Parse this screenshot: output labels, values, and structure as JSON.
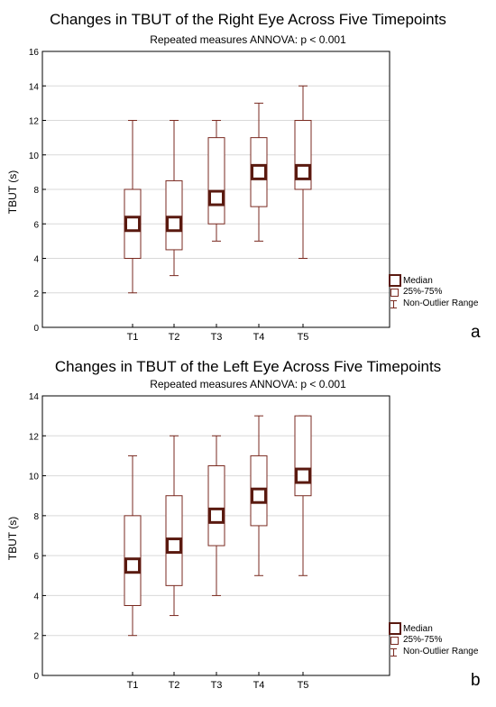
{
  "panels": [
    {
      "title": "Changes in TBUT of the Right Eye Across Five Timepoints",
      "subtitle": "Repeated measures ANNOVA: p < 0.001",
      "letter": "a"
    },
    {
      "title": "Changes in TBUT of the Left Eye Across Five Timepoints",
      "subtitle": "Repeated measures ANNOVA: p < 0.001",
      "letter": "b"
    }
  ],
  "legend": {
    "median": "Median",
    "box": "25%-75%",
    "whisker": "Non-Outlier Range"
  },
  "colors": {
    "box": "#7a2a20",
    "median": "#5a1a10",
    "grid": "#d9d9d9"
  },
  "chart_data": [
    {
      "type": "box",
      "title": "Changes in TBUT of the Right Eye Across Five Timepoints",
      "subtitle": "Repeated measures ANNOVA: p < 0.001",
      "xlabel": "",
      "ylabel": "TBUT (s)",
      "ylim": [
        0,
        16
      ],
      "yticks": [
        0,
        2,
        4,
        6,
        8,
        10,
        12,
        14,
        16
      ],
      "grid": true,
      "legend_position": "bottom-right",
      "categories": [
        "T1",
        "T2",
        "T3",
        "T4",
        "T5"
      ],
      "median": [
        6,
        6,
        7.5,
        9,
        9
      ],
      "q1": [
        4,
        4.5,
        6,
        7,
        8
      ],
      "q3": [
        8,
        8.5,
        11,
        11,
        12
      ],
      "min": [
        2,
        3,
        5,
        5,
        4
      ],
      "max": [
        12,
        12,
        12,
        13,
        14
      ]
    },
    {
      "type": "box",
      "title": "Changes in TBUT of the Left Eye Across Five Timepoints",
      "subtitle": "Repeated measures ANNOVA: p < 0.001",
      "xlabel": "",
      "ylabel": "TBUT (s)",
      "ylim": [
        0,
        14
      ],
      "yticks": [
        0,
        2,
        4,
        6,
        8,
        10,
        12,
        14
      ],
      "grid": true,
      "legend_position": "bottom-right",
      "categories": [
        "T1",
        "T2",
        "T3",
        "T4",
        "T5"
      ],
      "median": [
        5.5,
        6.5,
        8,
        9,
        10
      ],
      "q1": [
        3.5,
        4.5,
        6.5,
        7.5,
        9
      ],
      "q3": [
        8,
        9,
        10.5,
        11,
        13
      ],
      "min": [
        2,
        3,
        4,
        5,
        5
      ],
      "max": [
        11,
        12,
        12,
        13,
        13
      ]
    }
  ]
}
